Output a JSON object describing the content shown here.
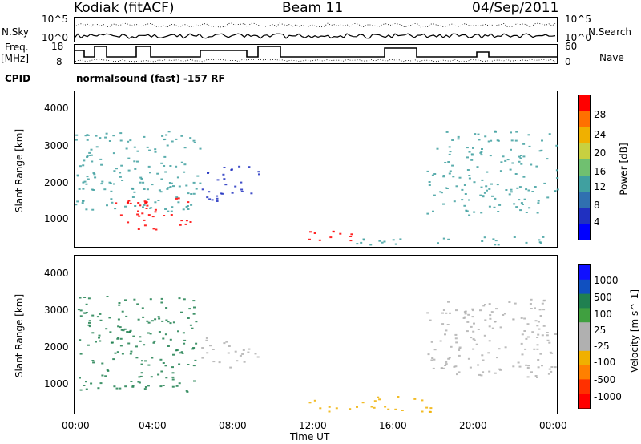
{
  "header": {
    "station": "Kodiak (fitACF)",
    "beam": "Beam 11",
    "date": "04/Sep/2011"
  },
  "top_panel": {
    "left_label": "N.Sky",
    "right_label": "N.Search",
    "ticks_left": [
      "10^5",
      "10^0"
    ],
    "ticks_right": [
      "10^5",
      "10^0"
    ]
  },
  "freq_panel": {
    "left_label_line1": "Freq.",
    "left_label_line2": "[MHz]",
    "right_label": "Nave",
    "ticks_left": [
      "18",
      "8"
    ],
    "ticks_right": [
      "60",
      "0"
    ]
  },
  "cpid": {
    "label": "CPID",
    "value": "normalsound (fast) -157 RF"
  },
  "colors": {
    "power_scale": [
      "#0000ff",
      "#2030c0",
      "#3070b0",
      "#40a0a0",
      "#70c070",
      "#c8d040",
      "#f0b000",
      "#ff7000",
      "#ff0000"
    ],
    "velocity_scale": [
      "#1010ff",
      "#1050c0",
      "#208050",
      "#40a040",
      "#b0b0b0",
      "#b0b0b0",
      "#f0b000",
      "#ff8000",
      "#ff3000",
      "#ff0000"
    ]
  },
  "chart_data": [
    {
      "type": "heatmap",
      "title": "",
      "xlabel": "Time UT",
      "ylabel": "Slant Range [km]",
      "xlim": [
        "00:00",
        "24:00"
      ],
      "ylim": [
        200,
        4600
      ],
      "x_ticks": [
        "00:00",
        "04:00",
        "08:00",
        "12:00",
        "16:00",
        "20:00",
        "00:00"
      ],
      "y_ticks": [
        1000,
        2000,
        3000,
        4000
      ],
      "colorbar": {
        "label": "Power [dB]",
        "range": [
          0,
          32
        ],
        "ticks": [
          4,
          8,
          12,
          16,
          20,
          24,
          28
        ]
      },
      "regions": [
        {
          "t_start": 0.0,
          "t_end": 6.2,
          "range_start": 1200,
          "range_end": 3500,
          "level": "low-mid"
        },
        {
          "t_start": 2.0,
          "t_end": 5.8,
          "range_start": 700,
          "range_end": 1600,
          "level": "high"
        },
        {
          "t_start": 6.3,
          "t_end": 9.2,
          "range_start": 1500,
          "range_end": 2500,
          "level": "low"
        },
        {
          "t_start": 11.5,
          "t_end": 14.0,
          "range_start": 400,
          "range_end": 700,
          "level": "high"
        },
        {
          "t_start": 14.0,
          "t_end": 24.0,
          "range_start": 250,
          "range_end": 500,
          "level": "low-mid"
        },
        {
          "t_start": 17.5,
          "t_end": 24.0,
          "range_start": 1100,
          "range_end": 3500,
          "level": "low-mid"
        }
      ]
    },
    {
      "type": "heatmap",
      "title": "",
      "xlabel": "Time UT",
      "ylabel": "Slant Range [km]",
      "xlim": [
        "00:00",
        "24:00"
      ],
      "ylim": [
        200,
        4600
      ],
      "x_ticks": [
        "00:00",
        "04:00",
        "08:00",
        "12:00",
        "16:00",
        "20:00",
        "00:00"
      ],
      "y_ticks": [
        1000,
        2000,
        3000,
        4000
      ],
      "colorbar": {
        "label": "Velocity [m s^-1]",
        "ticks": [
          1000,
          500,
          100,
          25,
          -25,
          -100,
          -500,
          -1000
        ]
      },
      "regions": [
        {
          "t_start": 0.0,
          "t_end": 6.0,
          "range_start": 800,
          "range_end": 3500,
          "velocity": "positive"
        },
        {
          "t_start": 6.3,
          "t_end": 9.2,
          "range_start": 1500,
          "range_end": 2400,
          "velocity": "near-zero"
        },
        {
          "t_start": 11.5,
          "t_end": 18.0,
          "range_start": 250,
          "range_end": 700,
          "velocity": "negative"
        },
        {
          "t_start": 17.5,
          "t_end": 24.0,
          "range_start": 1200,
          "range_end": 3400,
          "velocity": "near-zero"
        }
      ]
    }
  ]
}
